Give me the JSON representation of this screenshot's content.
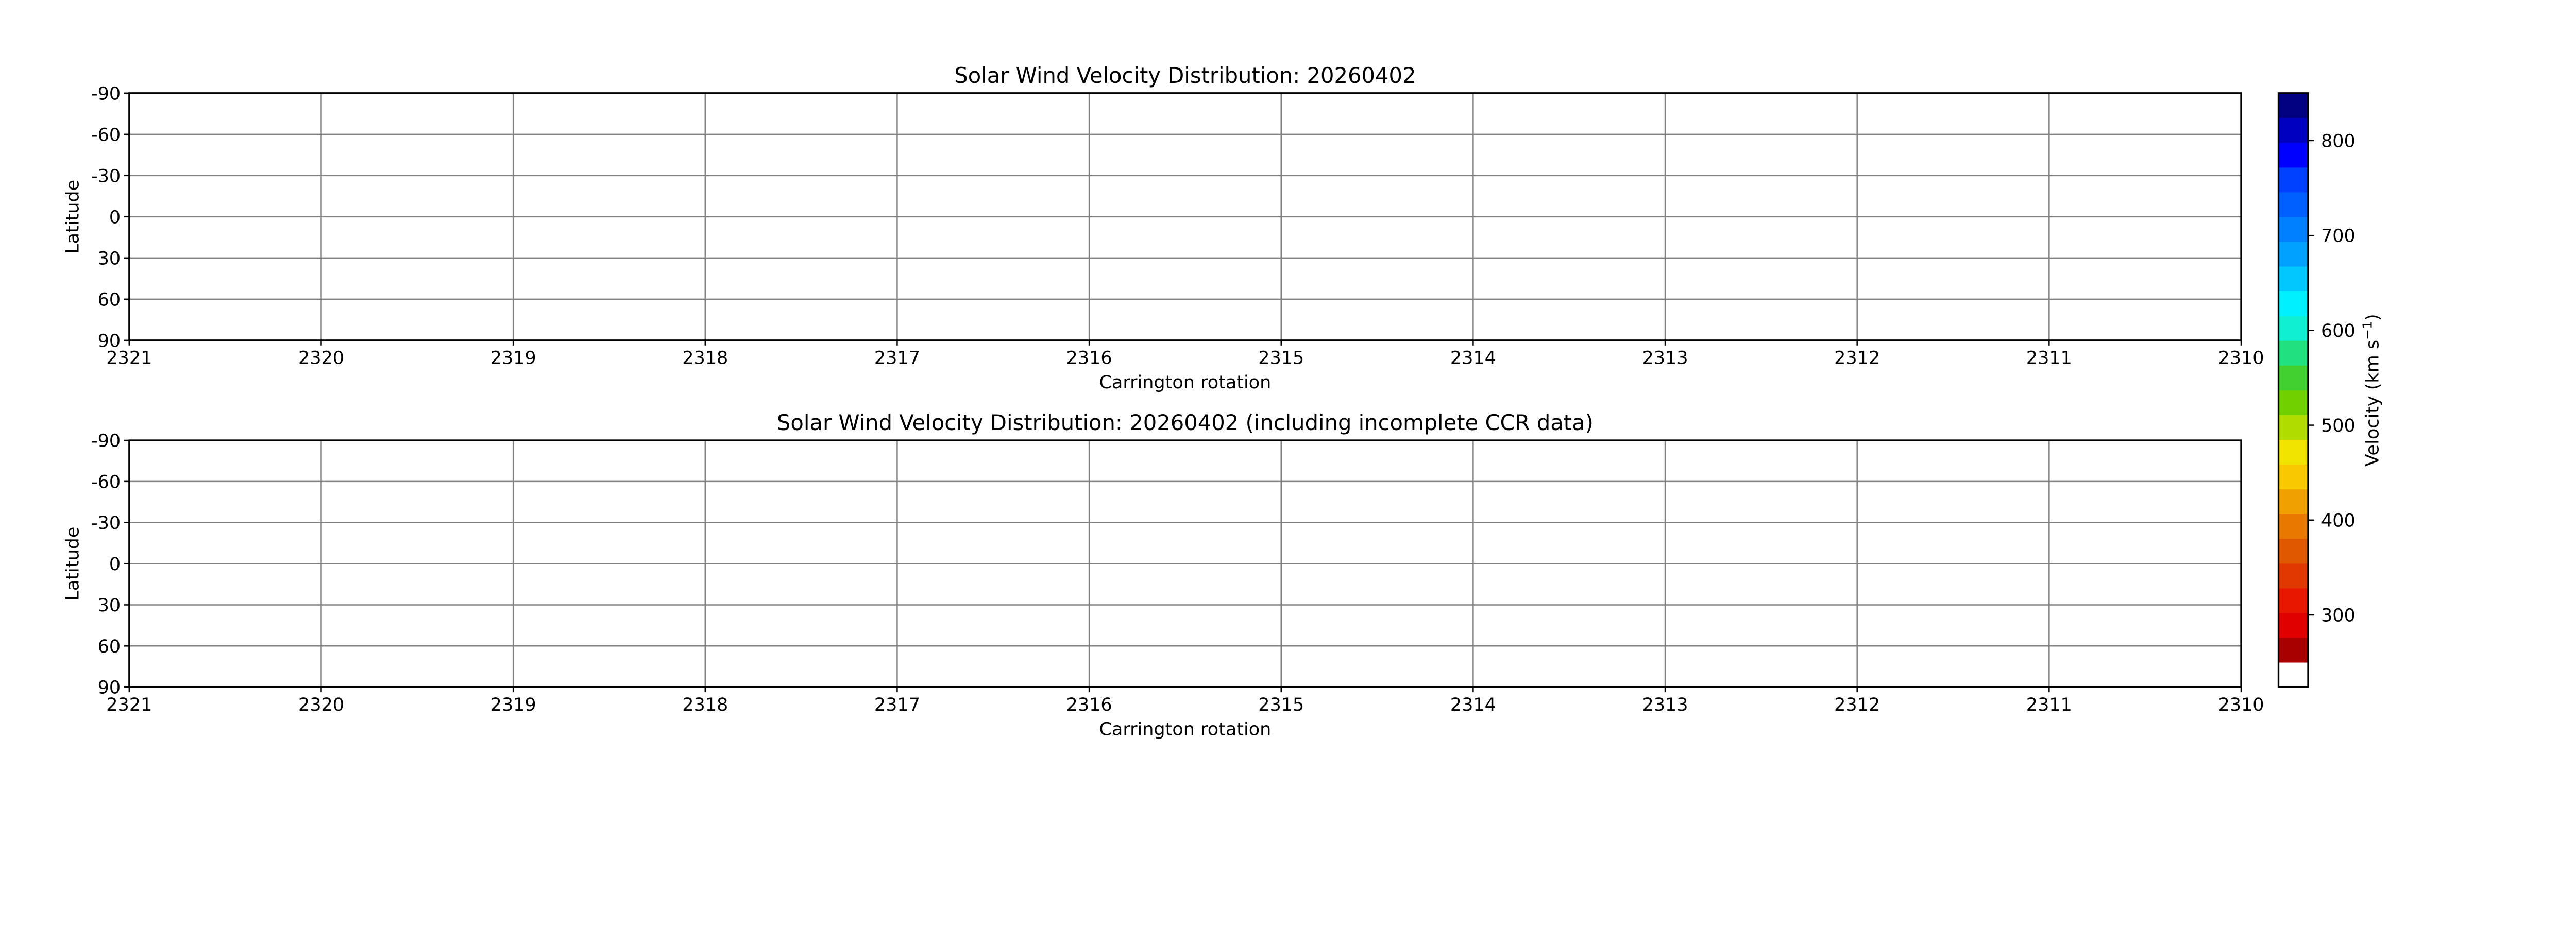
{
  "chart_data": [
    {
      "type": "heatmap",
      "title": "Solar Wind Velocity Distribution: 20260402",
      "xlabel": "Carrington rotation",
      "ylabel": "Latitude",
      "xlim": [
        2321,
        2310
      ],
      "ylim": [
        -90,
        90
      ],
      "x_ticks": [
        "2321",
        "2320",
        "2319",
        "2318",
        "2317",
        "2316",
        "2315",
        "2314",
        "2313",
        "2312",
        "2311",
        "2310"
      ],
      "y_ticks": [
        "-90",
        "-60",
        "-30",
        "0",
        "30",
        "60",
        "90"
      ],
      "grid": true,
      "values": []
    },
    {
      "type": "heatmap",
      "title": "Solar Wind Velocity Distribution: 20260402 (including incomplete CCR data)",
      "xlabel": "Carrington rotation",
      "ylabel": "Latitude",
      "xlim": [
        2321,
        2310
      ],
      "ylim": [
        -90,
        90
      ],
      "x_ticks": [
        "2321",
        "2320",
        "2319",
        "2318",
        "2317",
        "2316",
        "2315",
        "2314",
        "2313",
        "2312",
        "2311",
        "2310"
      ],
      "y_ticks": [
        "-90",
        "-60",
        "-30",
        "0",
        "30",
        "60",
        "90"
      ],
      "grid": true,
      "values": []
    }
  ],
  "colorbar": {
    "label": "Velocity (km s",
    "label_exp": "−1",
    "label_close": ")",
    "range": [
      250,
      850
    ],
    "ticks": [
      "300",
      "400",
      "500",
      "600",
      "700",
      "800"
    ],
    "under_color": "#ffffff",
    "colors": [
      "#a80000",
      "#e00000",
      "#e81800",
      "#e03800",
      "#e05800",
      "#e87800",
      "#f0a000",
      "#f8c800",
      "#f0e400",
      "#b0dc00",
      "#70d000",
      "#40d030",
      "#20e080",
      "#10f0d0",
      "#00f0ff",
      "#00c8ff",
      "#00a0ff",
      "#0080ff",
      "#0060ff",
      "#0040ff",
      "#0000ff",
      "#0000c0",
      "#000080"
    ]
  }
}
